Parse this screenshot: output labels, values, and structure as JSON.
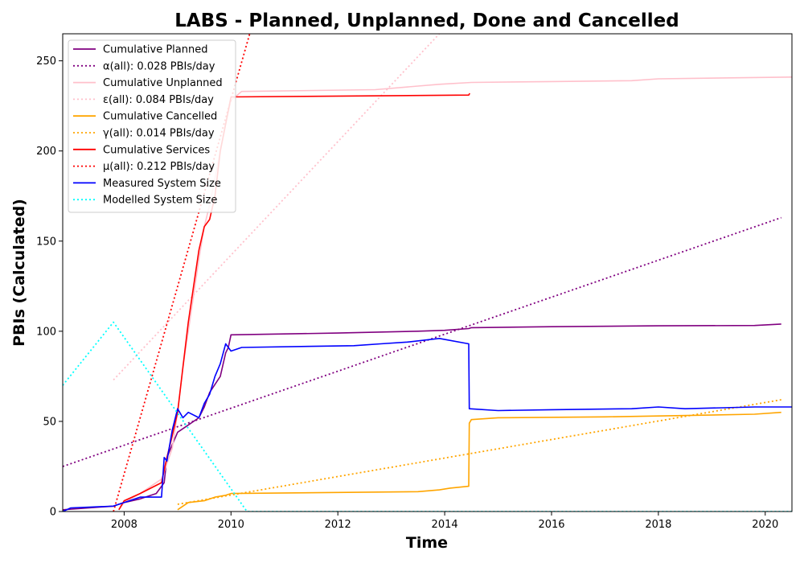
{
  "chart_data": {
    "type": "line",
    "title": "LABS - Planned, Unplanned, Done  and Cancelled",
    "xlabel": "Time",
    "ylabel": "PBIs (Calculated)",
    "xlim": [
      2006.85,
      2020.5
    ],
    "ylim": [
      0,
      265
    ],
    "xticks": [
      2008,
      2010,
      2012,
      2014,
      2016,
      2018,
      2020
    ],
    "yticks": [
      0,
      50,
      100,
      150,
      200,
      250
    ],
    "grid": false,
    "legend_position": "top-left",
    "series": [
      {
        "name": "Cumulative Planned",
        "color": "#800080",
        "style": "solid",
        "x": [
          2006.85,
          2007.8,
          2008.0,
          2008.3,
          2008.6,
          2008.75,
          2008.8,
          2008.9,
          2009.0,
          2009.2,
          2009.4,
          2009.5,
          2009.6,
          2009.8,
          2009.9,
          2009.95,
          2010.0,
          2012.0,
          2013.5,
          2014.0,
          2014.45,
          2014.5,
          2016.0,
          2018.0,
          2019.8,
          2020.3
        ],
        "y": [
          1,
          3,
          5,
          7,
          10,
          16,
          30,
          37,
          44,
          48,
          52,
          58,
          66,
          75,
          88,
          91,
          98,
          99,
          100,
          100.5,
          101.5,
          102,
          102.5,
          103,
          103.2,
          104
        ]
      },
      {
        "name": "α(all): 0.028 PBIs/day",
        "color": "#800080",
        "style": "dotted",
        "x": [
          2006.85,
          2020.3
        ],
        "y": [
          25,
          163
        ]
      },
      {
        "name": "Cumulative Unplanned",
        "color": "#ffc0cb",
        "style": "solid",
        "x": [
          2007.9,
          2008.0,
          2008.3,
          2008.7,
          2008.9,
          2009.0,
          2009.1,
          2009.2,
          2009.3,
          2009.4,
          2009.5,
          2009.6,
          2009.7,
          2009.8,
          2009.9,
          2010.0,
          2010.2,
          2012.7,
          2013.5,
          2013.9,
          2014.5,
          2016.0,
          2017.5,
          2018.0,
          2020.5
        ],
        "y": [
          1,
          5,
          10,
          18,
          35,
          55,
          80,
          100,
          120,
          140,
          158,
          170,
          185,
          200,
          215,
          228,
          233,
          234,
          236,
          237,
          238,
          238.5,
          239,
          240,
          241
        ]
      },
      {
        "name": "ε(all): 0.084 PBIs/day",
        "color": "#ffc0cb",
        "style": "dotted",
        "x": [
          2007.8,
          2013.9
        ],
        "y": [
          73,
          265
        ]
      },
      {
        "name": "Cumulative Cancelled",
        "color": "#ffa500",
        "style": "solid",
        "x": [
          2009.0,
          2009.1,
          2009.2,
          2009.5,
          2009.7,
          2009.9,
          2010.0,
          2013.5,
          2013.9,
          2014.1,
          2014.45,
          2014.46,
          2014.5,
          2015.0,
          2017.0,
          2018.0,
          2019.8,
          2020.3
        ],
        "y": [
          1,
          3,
          5,
          6,
          8,
          9,
          10,
          11,
          12,
          13,
          14,
          49,
          51,
          52,
          52.5,
          53,
          54,
          55
        ]
      },
      {
        "name": "γ(all): 0.014 PBIs/day",
        "color": "#ffa500",
        "style": "dotted",
        "x": [
          2009.0,
          2020.3
        ],
        "y": [
          4,
          62
        ]
      },
      {
        "name": "Cumulative Services",
        "color": "#ff0000",
        "style": "solid",
        "x": [
          2007.9,
          2008.0,
          2008.3,
          2008.7,
          2008.8,
          2008.9,
          2009.0,
          2009.1,
          2009.2,
          2009.3,
          2009.4,
          2009.5,
          2009.6,
          2009.7,
          2009.8,
          2009.9,
          2010.0,
          2014.45,
          2014.47
        ],
        "y": [
          1,
          6,
          10,
          16,
          30,
          42,
          55,
          80,
          105,
          125,
          145,
          158,
          162,
          175,
          200,
          215,
          230,
          231,
          232
        ]
      },
      {
        "name": "μ(all): 0.212 PBIs/day",
        "color": "#ff0000",
        "style": "dotted",
        "x": [
          2007.8,
          2010.35
        ],
        "y": [
          0,
          265
        ]
      },
      {
        "name": "Measured System Size",
        "color": "#0000ff",
        "style": "solid",
        "x": [
          2006.85,
          2007.0,
          2007.8,
          2008.3,
          2008.7,
          2008.75,
          2008.8,
          2008.9,
          2009.0,
          2009.1,
          2009.2,
          2009.4,
          2009.5,
          2009.6,
          2009.7,
          2009.8,
          2009.9,
          2010.0,
          2010.2,
          2012.3,
          2012.8,
          2013.3,
          2013.9,
          2014.45,
          2014.46,
          2015.0,
          2016.0,
          2017.5,
          2018.0,
          2018.5,
          2019.8,
          2020.3,
          2020.5
        ],
        "y": [
          0,
          2,
          3,
          8,
          8,
          30,
          28,
          45,
          57,
          52,
          55,
          52,
          60,
          65,
          75,
          82,
          93,
          89,
          91,
          92,
          93,
          94,
          96,
          93,
          57,
          56,
          56.5,
          57,
          58,
          57,
          58,
          58,
          58
        ]
      },
      {
        "name": "Modelled System Size",
        "color": "#00ffff",
        "style": "dotted",
        "x": [
          2006.85,
          2007.8,
          2010.3,
          2020.5
        ],
        "y": [
          70,
          105,
          0,
          0
        ]
      }
    ]
  }
}
